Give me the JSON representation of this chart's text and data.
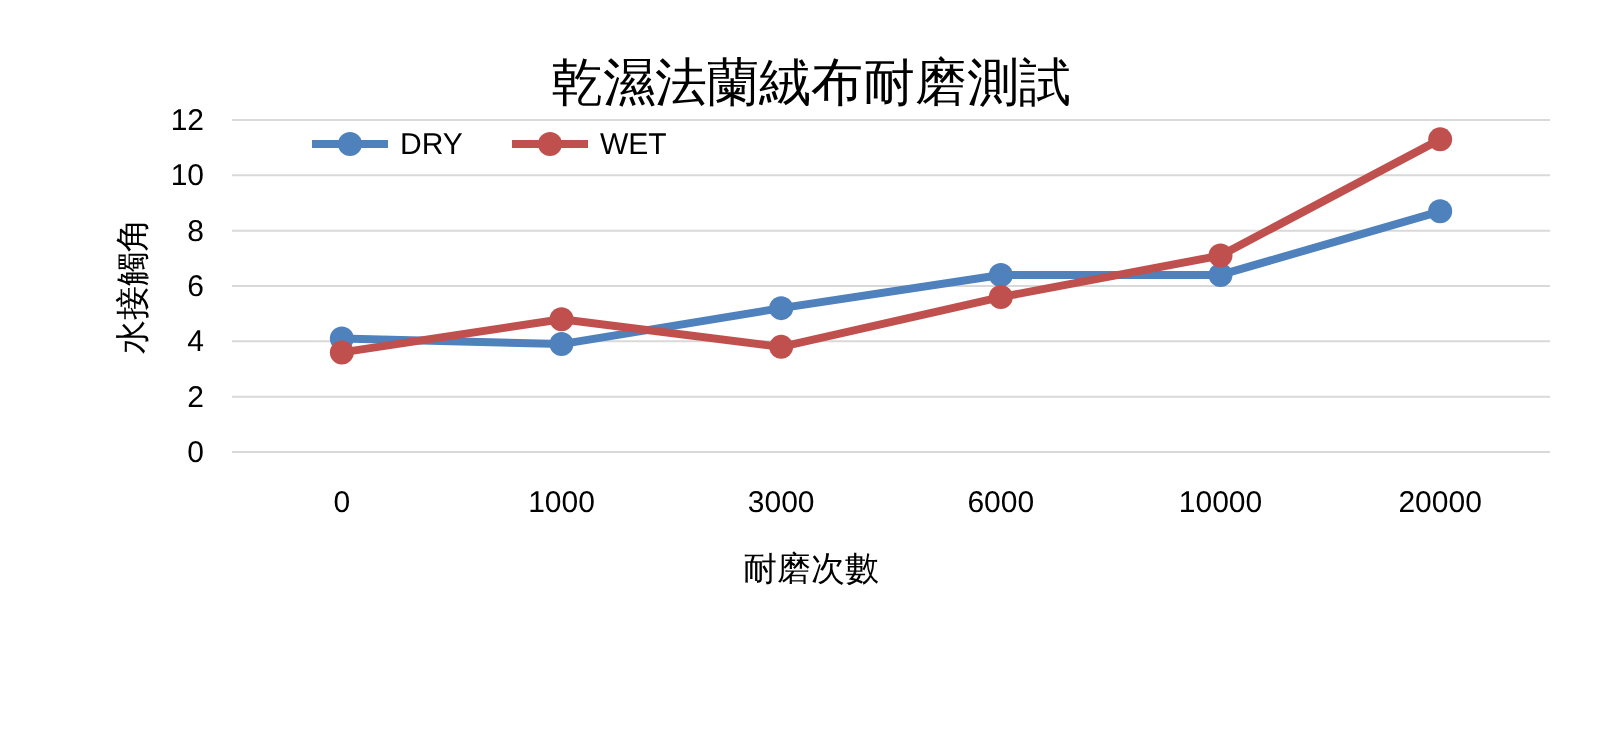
{
  "chart_data": {
    "type": "line",
    "title": "乾濕法蘭絨布耐磨測試",
    "xlabel": "耐磨次數",
    "ylabel": "水接觸角",
    "categories": [
      "0",
      "1000",
      "3000",
      "6000",
      "10000",
      "20000"
    ],
    "series": [
      {
        "name": "DRY",
        "color": "#4f81bd",
        "values": [
          4.1,
          3.9,
          5.2,
          6.4,
          6.4,
          8.7
        ]
      },
      {
        "name": "WET",
        "color": "#c0504d",
        "values": [
          3.6,
          4.8,
          3.8,
          5.6,
          7.1,
          11.3
        ]
      }
    ],
    "ylim": [
      0,
      12
    ],
    "yticks": [
      0,
      2,
      4,
      6,
      8,
      10,
      12
    ],
    "grid": "y",
    "legend": "top left",
    "marker": "circle",
    "line_style": "solid"
  }
}
